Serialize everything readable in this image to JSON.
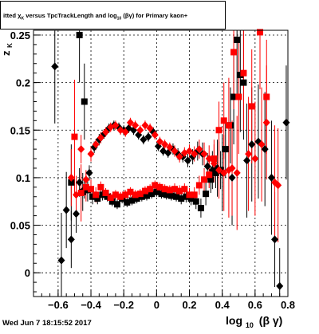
{
  "title": {
    "prefix": "itted",
    "chi": "χ",
    "chi_sub": "K",
    "mid": "versus TpcTrackLength and log",
    "log_sub": "10",
    "suffix": "(βγ) for Primary kaon+"
  },
  "footer": {
    "date": "Wed Jun  7 18:15:52 2017"
  },
  "chart_data": {
    "type": "scatter",
    "title": "itted χK versus TpcTrackLength and log10(βγ) for Primary kaon+",
    "xlabel": "log10 (β γ)",
    "xlabel_base": "log",
    "xlabel_sub": "10",
    "xlabel_tail": "(β γ)",
    "ylabel": "z",
    "ylabel_sub": "K",
    "xlim": [
      -0.75,
      0.8
    ],
    "ylim": [
      -0.025,
      0.255
    ],
    "x_ticks": [
      -0.6,
      -0.4,
      -0.2,
      0,
      0.2,
      0.4,
      0.6,
      0.8
    ],
    "x_tick_labels": [
      "−0.6",
      "−0.4",
      "−0.2",
      "0",
      "0.2",
      "0.4",
      "0.6",
      "0.8"
    ],
    "y_ticks": [
      0,
      0.05,
      0.1,
      0.15,
      0.2,
      0.25
    ],
    "y_tick_labels": [
      "0",
      "0.05",
      "0.1",
      "0.15",
      "0.2",
      "0.25"
    ],
    "grid": true,
    "colors": {
      "black": "#000000",
      "red": "#ff0000"
    },
    "series": [
      {
        "marker": "square",
        "color": "#000000",
        "points": [
          {
            "x": -0.47,
            "y": 0.25,
            "err": 0.05
          },
          {
            "x": -0.44,
            "y": 0.18,
            "err": 0.04
          },
          {
            "x": -0.52,
            "y": 0.095,
            "err": 0.04
          },
          {
            "x": -0.45,
            "y": 0.085,
            "err": 0.02
          },
          {
            "x": -0.42,
            "y": 0.087,
            "err": 0.012
          },
          {
            "x": -0.39,
            "y": 0.08,
            "err": 0.008
          },
          {
            "x": -0.36,
            "y": 0.078,
            "err": 0.006
          },
          {
            "x": -0.33,
            "y": 0.082,
            "err": 0.006
          },
          {
            "x": -0.3,
            "y": 0.08,
            "err": 0.005
          },
          {
            "x": -0.27,
            "y": 0.075,
            "err": 0.005
          },
          {
            "x": -0.24,
            "y": 0.072,
            "err": 0.005
          },
          {
            "x": -0.21,
            "y": 0.078,
            "err": 0.005
          },
          {
            "x": -0.18,
            "y": 0.074,
            "err": 0.005
          },
          {
            "x": -0.15,
            "y": 0.076,
            "err": 0.005
          },
          {
            "x": -0.12,
            "y": 0.078,
            "err": 0.005
          },
          {
            "x": -0.09,
            "y": 0.08,
            "err": 0.005
          },
          {
            "x": -0.06,
            "y": 0.081,
            "err": 0.005
          },
          {
            "x": -0.03,
            "y": 0.083,
            "err": 0.005
          },
          {
            "x": 0.0,
            "y": 0.085,
            "err": 0.005
          },
          {
            "x": 0.03,
            "y": 0.083,
            "err": 0.005
          },
          {
            "x": 0.06,
            "y": 0.082,
            "err": 0.005
          },
          {
            "x": 0.09,
            "y": 0.081,
            "err": 0.005
          },
          {
            "x": 0.12,
            "y": 0.08,
            "err": 0.005
          },
          {
            "x": 0.15,
            "y": 0.078,
            "err": 0.006
          },
          {
            "x": 0.18,
            "y": 0.08,
            "err": 0.006
          },
          {
            "x": 0.21,
            "y": 0.078,
            "err": 0.007
          },
          {
            "x": 0.24,
            "y": 0.075,
            "err": 0.008
          },
          {
            "x": 0.27,
            "y": 0.068,
            "err": 0.01
          },
          {
            "x": 0.3,
            "y": 0.083,
            "err": 0.012
          },
          {
            "x": 0.33,
            "y": 0.098,
            "err": 0.014
          },
          {
            "x": 0.36,
            "y": 0.105,
            "err": 0.016
          },
          {
            "x": 0.39,
            "y": 0.108,
            "err": 0.02
          },
          {
            "x": 0.42,
            "y": 0.13,
            "err": 0.03
          },
          {
            "x": 0.45,
            "y": 0.155,
            "err": 0.04
          },
          {
            "x": 0.47,
            "y": 0.185,
            "err": 0.05
          },
          {
            "x": 0.49,
            "y": 0.245,
            "err": 0.06
          },
          {
            "x": 0.51,
            "y": 0.208,
            "err": 0.06
          },
          {
            "x": 0.53,
            "y": 0.2,
            "err": 0.06
          }
        ]
      },
      {
        "marker": "diamond",
        "color": "#000000",
        "points": [
          {
            "x": -0.62,
            "y": 0.217,
            "err": 0.06
          },
          {
            "x": -0.58,
            "y": 0.013,
            "err": 0.05
          },
          {
            "x": -0.55,
            "y": 0.066,
            "err": 0.04
          },
          {
            "x": -0.52,
            "y": 0.035,
            "err": 0.03
          },
          {
            "x": -0.49,
            "y": 0.062,
            "err": 0.02
          },
          {
            "x": -0.47,
            "y": 0.095,
            "err": 0.015
          },
          {
            "x": -0.44,
            "y": 0.088,
            "err": 0.01
          },
          {
            "x": -0.41,
            "y": 0.105,
            "err": 0.008
          },
          {
            "x": -0.38,
            "y": 0.132,
            "err": 0.006
          },
          {
            "x": -0.35,
            "y": 0.14,
            "err": 0.006
          },
          {
            "x": -0.32,
            "y": 0.146,
            "err": 0.005
          },
          {
            "x": -0.29,
            "y": 0.152,
            "err": 0.005
          },
          {
            "x": -0.26,
            "y": 0.155,
            "err": 0.005
          },
          {
            "x": -0.23,
            "y": 0.153,
            "err": 0.005
          },
          {
            "x": -0.2,
            "y": 0.15,
            "err": 0.005
          },
          {
            "x": -0.17,
            "y": 0.152,
            "err": 0.005
          },
          {
            "x": -0.14,
            "y": 0.15,
            "err": 0.005
          },
          {
            "x": -0.11,
            "y": 0.145,
            "err": 0.005
          },
          {
            "x": -0.08,
            "y": 0.14,
            "err": 0.005
          },
          {
            "x": -0.05,
            "y": 0.143,
            "err": 0.005
          },
          {
            "x": -0.02,
            "y": 0.148,
            "err": 0.005
          },
          {
            "x": 0.01,
            "y": 0.133,
            "err": 0.005
          },
          {
            "x": 0.04,
            "y": 0.128,
            "err": 0.005
          },
          {
            "x": 0.07,
            "y": 0.126,
            "err": 0.005
          },
          {
            "x": 0.1,
            "y": 0.13,
            "err": 0.006
          },
          {
            "x": 0.13,
            "y": 0.125,
            "err": 0.006
          },
          {
            "x": 0.16,
            "y": 0.122,
            "err": 0.006
          },
          {
            "x": 0.19,
            "y": 0.118,
            "err": 0.007
          },
          {
            "x": 0.22,
            "y": 0.122,
            "err": 0.008
          },
          {
            "x": 0.25,
            "y": 0.128,
            "err": 0.01
          },
          {
            "x": 0.28,
            "y": 0.125,
            "err": 0.012
          },
          {
            "x": 0.31,
            "y": 0.112,
            "err": 0.014
          },
          {
            "x": 0.34,
            "y": 0.108,
            "err": 0.02
          },
          {
            "x": 0.37,
            "y": 0.11,
            "err": 0.03
          },
          {
            "x": 0.4,
            "y": 0.105,
            "err": 0.04
          },
          {
            "x": 0.46,
            "y": 0.1,
            "err": 0.05
          },
          {
            "x": 0.55,
            "y": 0.118,
            "err": 0.06
          },
          {
            "x": 0.58,
            "y": 0.135,
            "err": 0.06
          },
          {
            "x": 0.62,
            "y": 0.138,
            "err": 0.06
          },
          {
            "x": 0.66,
            "y": 0.13,
            "err": 0.06
          },
          {
            "x": 0.7,
            "y": 0.1,
            "err": 0.06
          },
          {
            "x": 0.72,
            "y": 0.035,
            "err": 0.05
          },
          {
            "x": 0.75,
            "y": -0.014,
            "err": 0.04
          },
          {
            "x": 0.79,
            "y": 0.158,
            "err": 0.06
          }
        ]
      },
      {
        "marker": "square",
        "color": "#ff0000",
        "points": [
          {
            "x": -0.5,
            "y": 0.143,
            "err": 0.06
          },
          {
            "x": -0.46,
            "y": 0.084,
            "err": 0.03
          },
          {
            "x": -0.43,
            "y": 0.09,
            "err": 0.015
          },
          {
            "x": -0.4,
            "y": 0.088,
            "err": 0.01
          },
          {
            "x": -0.37,
            "y": 0.082,
            "err": 0.008
          },
          {
            "x": -0.34,
            "y": 0.09,
            "err": 0.006
          },
          {
            "x": -0.31,
            "y": 0.084,
            "err": 0.005
          },
          {
            "x": -0.28,
            "y": 0.079,
            "err": 0.005
          },
          {
            "x": -0.25,
            "y": 0.082,
            "err": 0.005
          },
          {
            "x": -0.22,
            "y": 0.08,
            "err": 0.005
          },
          {
            "x": -0.19,
            "y": 0.082,
            "err": 0.005
          },
          {
            "x": -0.16,
            "y": 0.085,
            "err": 0.005
          },
          {
            "x": -0.13,
            "y": 0.082,
            "err": 0.005
          },
          {
            "x": -0.1,
            "y": 0.083,
            "err": 0.005
          },
          {
            "x": -0.07,
            "y": 0.086,
            "err": 0.005
          },
          {
            "x": -0.04,
            "y": 0.088,
            "err": 0.005
          },
          {
            "x": -0.01,
            "y": 0.092,
            "err": 0.005
          },
          {
            "x": 0.02,
            "y": 0.09,
            "err": 0.005
          },
          {
            "x": 0.05,
            "y": 0.088,
            "err": 0.005
          },
          {
            "x": 0.08,
            "y": 0.087,
            "err": 0.005
          },
          {
            "x": 0.11,
            "y": 0.088,
            "err": 0.006
          },
          {
            "x": 0.14,
            "y": 0.086,
            "err": 0.006
          },
          {
            "x": 0.17,
            "y": 0.088,
            "err": 0.006
          },
          {
            "x": 0.2,
            "y": 0.082,
            "err": 0.007
          },
          {
            "x": 0.23,
            "y": 0.082,
            "err": 0.008
          },
          {
            "x": 0.26,
            "y": 0.092,
            "err": 0.01
          },
          {
            "x": 0.29,
            "y": 0.098,
            "err": 0.012
          },
          {
            "x": 0.32,
            "y": 0.103,
            "err": 0.014
          },
          {
            "x": 0.35,
            "y": 0.12,
            "err": 0.02
          },
          {
            "x": 0.38,
            "y": 0.15,
            "err": 0.03
          },
          {
            "x": 0.41,
            "y": 0.16,
            "err": 0.04
          },
          {
            "x": 0.44,
            "y": 0.155,
            "err": 0.05
          },
          {
            "x": 0.47,
            "y": 0.232,
            "err": 0.06
          },
          {
            "x": 0.5,
            "y": 0.185,
            "err": 0.06
          },
          {
            "x": 0.53,
            "y": 0.21,
            "err": 0.06
          },
          {
            "x": 0.58,
            "y": 0.175,
            "err": 0.06
          },
          {
            "x": 0.63,
            "y": 0.253,
            "err": 0.06
          },
          {
            "x": 0.67,
            "y": 0.185,
            "err": 0.06
          }
        ]
      },
      {
        "marker": "diamond",
        "color": "#ff0000",
        "points": [
          {
            "x": -0.52,
            "y": 0.1,
            "err": 0.03
          },
          {
            "x": -0.49,
            "y": 0.082,
            "err": 0.02
          },
          {
            "x": -0.46,
            "y": 0.13,
            "err": 0.015
          },
          {
            "x": -0.43,
            "y": 0.098,
            "err": 0.01
          },
          {
            "x": -0.4,
            "y": 0.125,
            "err": 0.008
          },
          {
            "x": -0.37,
            "y": 0.135,
            "err": 0.006
          },
          {
            "x": -0.34,
            "y": 0.142,
            "err": 0.006
          },
          {
            "x": -0.31,
            "y": 0.148,
            "err": 0.005
          },
          {
            "x": -0.28,
            "y": 0.153,
            "err": 0.005
          },
          {
            "x": -0.25,
            "y": 0.155,
            "err": 0.005
          },
          {
            "x": -0.22,
            "y": 0.15,
            "err": 0.005
          },
          {
            "x": -0.19,
            "y": 0.148,
            "err": 0.005
          },
          {
            "x": -0.16,
            "y": 0.158,
            "err": 0.005
          },
          {
            "x": -0.13,
            "y": 0.155,
            "err": 0.005
          },
          {
            "x": -0.1,
            "y": 0.15,
            "err": 0.005
          },
          {
            "x": -0.07,
            "y": 0.155,
            "err": 0.005
          },
          {
            "x": -0.04,
            "y": 0.152,
            "err": 0.005
          },
          {
            "x": -0.01,
            "y": 0.145,
            "err": 0.005
          },
          {
            "x": 0.02,
            "y": 0.138,
            "err": 0.005
          },
          {
            "x": 0.05,
            "y": 0.135,
            "err": 0.005
          },
          {
            "x": 0.08,
            "y": 0.132,
            "err": 0.005
          },
          {
            "x": 0.11,
            "y": 0.128,
            "err": 0.006
          },
          {
            "x": 0.14,
            "y": 0.122,
            "err": 0.006
          },
          {
            "x": 0.17,
            "y": 0.126,
            "err": 0.006
          },
          {
            "x": 0.2,
            "y": 0.128,
            "err": 0.007
          },
          {
            "x": 0.23,
            "y": 0.125,
            "err": 0.008
          },
          {
            "x": 0.26,
            "y": 0.13,
            "err": 0.01
          },
          {
            "x": 0.29,
            "y": 0.125,
            "err": 0.012
          },
          {
            "x": 0.32,
            "y": 0.12,
            "err": 0.014
          },
          {
            "x": 0.35,
            "y": 0.115,
            "err": 0.02
          },
          {
            "x": 0.38,
            "y": 0.108,
            "err": 0.03
          },
          {
            "x": 0.41,
            "y": 0.105,
            "err": 0.04
          },
          {
            "x": 0.44,
            "y": 0.108,
            "err": 0.05
          },
          {
            "x": 0.46,
            "y": 0.11,
            "err": 0.05
          },
          {
            "x": 0.49,
            "y": 0.105,
            "err": 0.06
          },
          {
            "x": 0.56,
            "y": 0.125,
            "err": 0.06
          },
          {
            "x": 0.6,
            "y": 0.12,
            "err": 0.06
          },
          {
            "x": 0.64,
            "y": 0.135,
            "err": 0.06
          },
          {
            "x": 0.67,
            "y": 0.158,
            "err": 0.06
          },
          {
            "x": 0.72,
            "y": 0.095,
            "err": 0.06
          },
          {
            "x": 0.74,
            "y": 0.092,
            "err": 0.06
          }
        ]
      }
    ]
  }
}
